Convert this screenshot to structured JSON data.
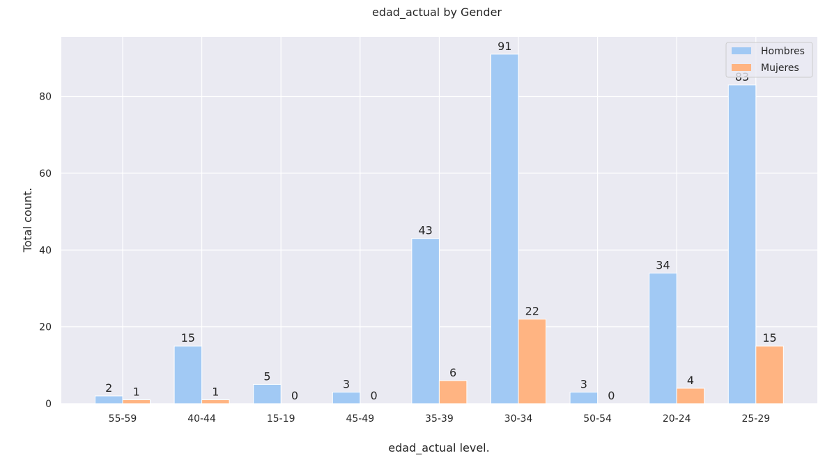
{
  "chart_data": {
    "type": "bar",
    "title": "edad_actual by Gender",
    "xlabel": "edad_actual level.",
    "ylabel": "Total count.",
    "categories": [
      "55-59",
      "40-44",
      "15-19",
      "45-49",
      "35-39",
      "30-34",
      "50-54",
      "20-24",
      "25-29"
    ],
    "series": [
      {
        "name": "Hombres",
        "values": [
          2,
          15,
          5,
          3,
          43,
          91,
          3,
          34,
          83
        ],
        "color": "#a1c9f4"
      },
      {
        "name": "Mujeres",
        "values": [
          1,
          1,
          0,
          0,
          6,
          22,
          0,
          4,
          15
        ],
        "color": "#ffb482"
      }
    ],
    "ylim": [
      0,
      95.5
    ],
    "yticks": [
      0,
      20,
      40,
      60,
      80
    ],
    "grid": true,
    "legend_position": "top-right",
    "background": "#eaeaf2"
  }
}
